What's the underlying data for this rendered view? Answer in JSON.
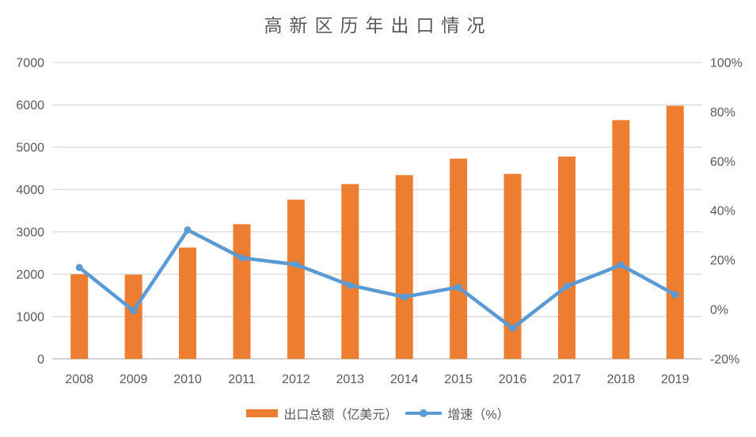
{
  "chart_data": {
    "type": "bar",
    "subtype": "bar-line-combo",
    "title": "高新区历年出口情况",
    "categories": [
      "2008",
      "2009",
      "2010",
      "2011",
      "2012",
      "2013",
      "2014",
      "2015",
      "2016",
      "2017",
      "2018",
      "2019"
    ],
    "series": [
      {
        "name": "出口总额（亿美元）",
        "type": "bar",
        "axis": "left",
        "values": [
          2000,
          1990,
          2630,
          3180,
          3760,
          4130,
          4340,
          4730,
          4370,
          4780,
          5640,
          5980
        ]
      },
      {
        "name": "增速（%）",
        "type": "line",
        "axis": "right",
        "values": [
          17.0,
          -0.5,
          32.2,
          20.9,
          18.2,
          9.8,
          5.1,
          9.0,
          -7.6,
          9.4,
          18.0,
          6.0
        ]
      }
    ],
    "left_axis": {
      "min": 0,
      "max": 7000,
      "step": 1000,
      "tick_labels": [
        "0",
        "1000",
        "2000",
        "3000",
        "4000",
        "5000",
        "6000",
        "7000"
      ]
    },
    "right_axis": {
      "min": -20,
      "max": 100,
      "step": 20,
      "tick_labels": [
        "-20%",
        "0%",
        "20%",
        "40%",
        "60%",
        "80%",
        "100%"
      ]
    },
    "grid": "horizontal-on",
    "legend_position": "bottom",
    "colors": {
      "bar": "#ED7D31",
      "line": "#5B9BD5",
      "marker": "#5B9BD5",
      "gridline": "#D9D9D9",
      "axis_line": "#BFBFBF",
      "text": "#595959"
    }
  }
}
